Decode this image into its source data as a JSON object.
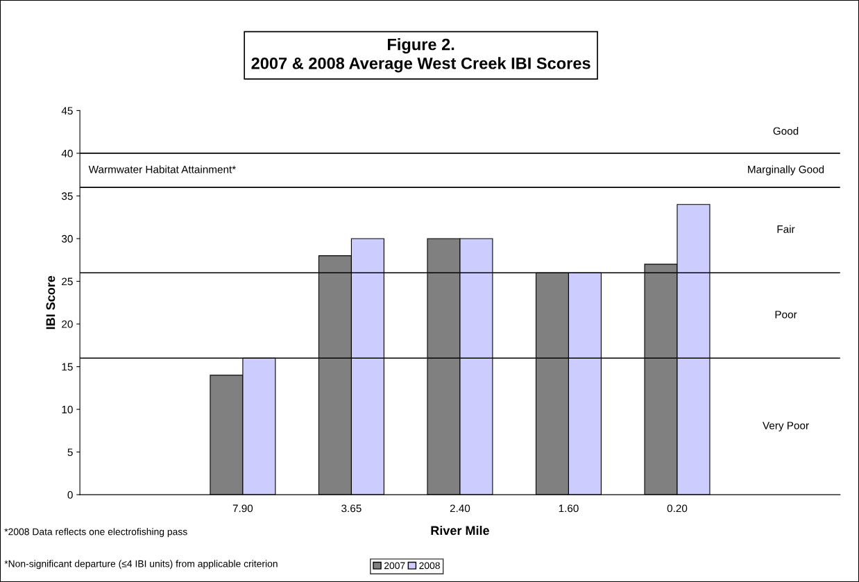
{
  "chart_data": {
    "type": "bar",
    "title": "Figure 2.\n2007 & 2008 Average West Creek IBI Scores",
    "xlabel": "River Mile",
    "ylabel": "IBI Score",
    "categories": [
      null,
      "7.90",
      "3.65",
      "2.40",
      "1.60",
      "0.20",
      null
    ],
    "series": [
      {
        "name": "2007",
        "color": "#808080",
        "values": [
          null,
          14,
          28,
          30,
          26,
          27,
          null
        ]
      },
      {
        "name": "2008",
        "color": "#ccccff",
        "values": [
          null,
          16,
          30,
          30,
          26,
          34,
          null
        ]
      }
    ],
    "ylim": [
      0,
      45
    ],
    "yticks": [
      0,
      5,
      10,
      15,
      20,
      25,
      30,
      35,
      40,
      45
    ],
    "grid": false,
    "legend": "bottom",
    "ref_lines": [
      {
        "axis": "y",
        "value": 40,
        "color": "#000000"
      },
      {
        "axis": "y",
        "value": 36,
        "color": "#000000"
      },
      {
        "axis": "y",
        "value": 26,
        "color": "#000000"
      },
      {
        "axis": "y",
        "value": 16,
        "color": "#000000"
      }
    ],
    "annotations": [
      "Good",
      "Marginally Good",
      "Fair",
      "Poor",
      "Very Poor",
      "Warmwater Habitat Attainment*",
      "*2008 Data reflects one electrofishing pass",
      "*Non-significant departure (≤4 IBI units) from applicable criterion"
    ]
  }
}
